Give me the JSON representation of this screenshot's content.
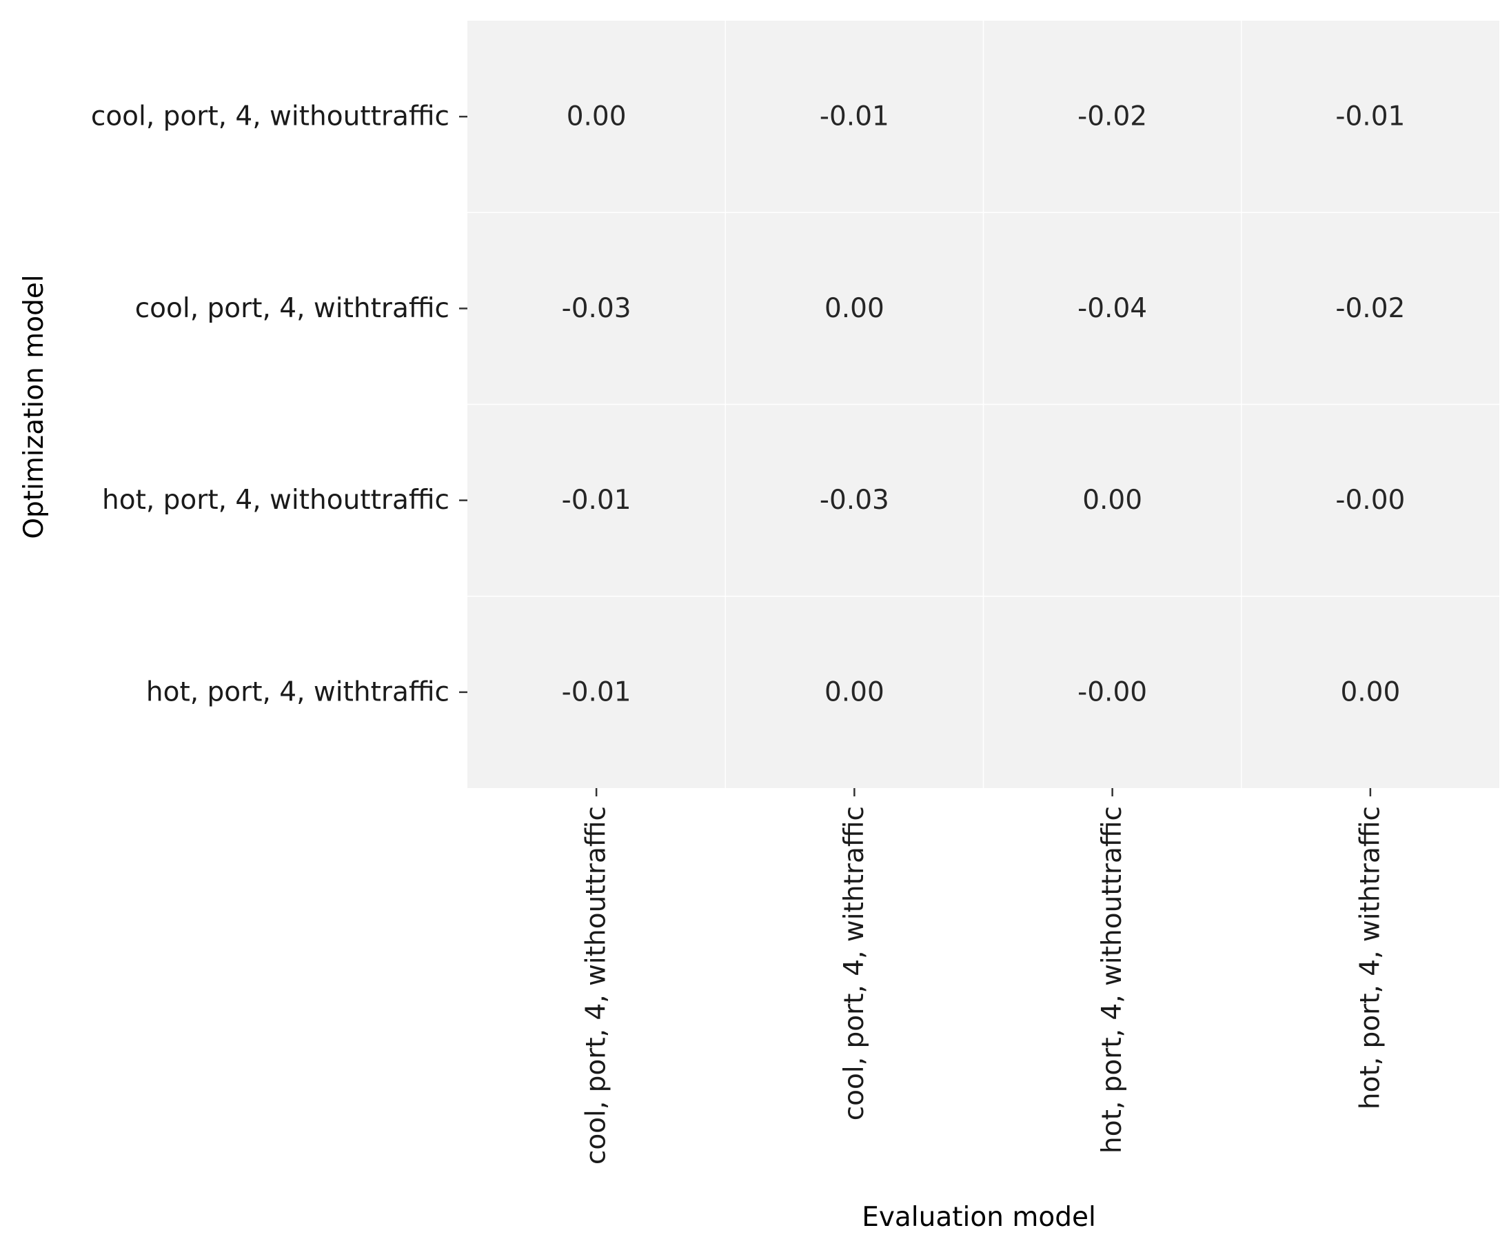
{
  "chart_data": {
    "type": "heatmap",
    "xlabel": "Evaluation model",
    "ylabel": "Optimization model",
    "x_categories": [
      "cool, port, 4, withouttraffic",
      "cool, port, 4, withtraffic",
      "hot, port, 4, withouttraffic",
      "hot, port, 4, withtraffic"
    ],
    "y_categories": [
      "cool, port, 4, withouttraffic",
      "cool, port, 4, withtraffic",
      "hot, port, 4, withouttraffic",
      "hot, port, 4, withtraffic"
    ],
    "values": [
      [
        "0.00",
        "-0.01",
        "-0.02",
        "-0.01"
      ],
      [
        "-0.03",
        "0.00",
        "-0.04",
        "-0.02"
      ],
      [
        "-0.01",
        "-0.03",
        "0.00",
        "-0.00"
      ],
      [
        "-0.01",
        "0.00",
        "-0.00",
        "0.00"
      ]
    ],
    "colors": {
      "cell_fill": "#f2f2f2",
      "grid_line": "#ffffff",
      "cell_text": "#262626"
    },
    "grid": true,
    "legend": "none"
  }
}
